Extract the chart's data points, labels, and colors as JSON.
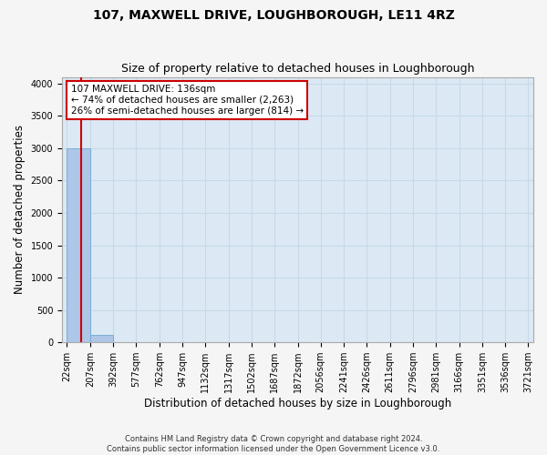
{
  "title": "107, MAXWELL DRIVE, LOUGHBOROUGH, LE11 4RZ",
  "subtitle": "Size of property relative to detached houses in Loughborough",
  "xlabel": "Distribution of detached houses by size in Loughborough",
  "ylabel": "Number of detached properties",
  "footer_line1": "Contains HM Land Registry data © Crown copyright and database right 2024.",
  "footer_line2": "Contains public sector information licensed under the Open Government Licence v3.0.",
  "bin_edges": [
    22,
    207,
    392,
    577,
    762,
    947,
    1132,
    1317,
    1502,
    1687,
    1872,
    2056,
    2241,
    2426,
    2611,
    2796,
    2981,
    3166,
    3351,
    3536,
    3721
  ],
  "bin_labels": [
    "22sqm",
    "207sqm",
    "392sqm",
    "577sqm",
    "762sqm",
    "947sqm",
    "1132sqm",
    "1317sqm",
    "1502sqm",
    "1687sqm",
    "1872sqm",
    "2056sqm",
    "2241sqm",
    "2426sqm",
    "2611sqm",
    "2796sqm",
    "2981sqm",
    "3166sqm",
    "3351sqm",
    "3536sqm",
    "3721sqm"
  ],
  "bar_heights": [
    3000,
    115,
    0,
    0,
    0,
    0,
    0,
    0,
    0,
    0,
    0,
    0,
    0,
    0,
    0,
    0,
    0,
    0,
    0,
    0
  ],
  "bar_color": "#aec6e8",
  "bar_edge_color": "#7aadd4",
  "property_size": 136,
  "property_line_color": "#cc0000",
  "annotation_line1": "107 MAXWELL DRIVE: 136sqm",
  "annotation_line2": "← 74% of detached houses are smaller (2,263)",
  "annotation_line3": "26% of semi-detached houses are larger (814) →",
  "annotation_box_color": "#cc0000",
  "ylim": [
    0,
    4100
  ],
  "yticks": [
    0,
    500,
    1000,
    1500,
    2000,
    2500,
    3000,
    3500,
    4000
  ],
  "plot_bg_color": "#dce9f5",
  "fig_bg_color": "#f5f5f5",
  "grid_color": "#c8d8e8",
  "title_fontsize": 10,
  "subtitle_fontsize": 9,
  "axis_label_fontsize": 8.5,
  "tick_fontsize": 7,
  "annotation_fontsize": 7.5
}
